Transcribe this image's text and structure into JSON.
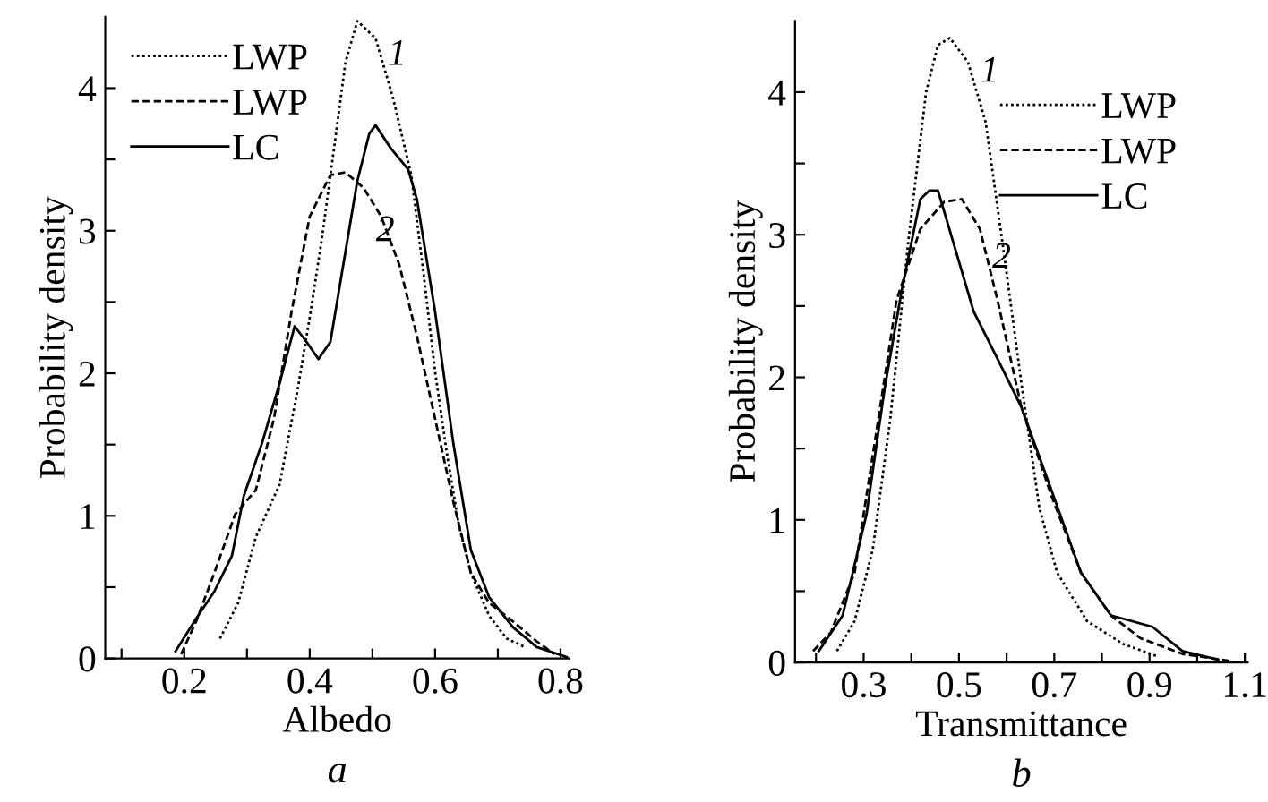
{
  "chart_data": [
    {
      "type": "line",
      "xlabel": "Albedo",
      "ylabel": "Probability density",
      "xlim": [
        0.074,
        0.814
      ],
      "ylim": [
        0,
        4.5
      ],
      "xticks": [
        {
          "value": 0.1,
          "label": null
        },
        0.2,
        {
          "value": 0.3,
          "label": null
        },
        0.4,
        {
          "value": 0.5,
          "label": null
        },
        0.6,
        {
          "value": 0.7,
          "label": null
        },
        0.8
      ],
      "yticks": [
        0,
        {
          "value": 0.5,
          "label": null
        },
        1,
        {
          "value": 1.5,
          "label": null
        },
        2,
        {
          "value": 2.5,
          "label": null
        },
        3,
        {
          "value": 3.5,
          "label": null
        },
        4
      ],
      "grid": false,
      "legend": "top left",
      "series": [
        {
          "name": "LWP",
          "color": "#000000",
          "line_style": "dotted",
          "x": [
            0.257,
            0.286,
            0.314,
            0.352,
            0.381,
            0.4,
            0.419,
            0.438,
            0.457,
            0.476,
            0.505,
            0.533,
            0.562,
            0.581,
            0.6,
            0.619,
            0.638,
            0.657,
            0.686,
            0.714,
            0.743
          ],
          "values": [
            0.14,
            0.39,
            0.85,
            1.22,
            1.89,
            2.39,
            2.93,
            3.55,
            4.18,
            4.47,
            4.35,
            3.93,
            3.39,
            2.72,
            2.01,
            1.43,
            0.93,
            0.6,
            0.3,
            0.14,
            0.08
          ]
        },
        {
          "name": "LWP",
          "color": "#000000",
          "line_style": "dashed",
          "x": [
            0.195,
            0.219,
            0.248,
            0.281,
            0.314,
            0.343,
            0.371,
            0.4,
            0.433,
            0.457,
            0.486,
            0.514,
            0.543,
            0.571,
            0.6,
            0.629,
            0.657,
            0.686,
            0.724,
            0.762,
            0.79
          ],
          "values": [
            0.03,
            0.26,
            0.6,
            1.01,
            1.18,
            1.68,
            2.43,
            3.1,
            3.39,
            3.41,
            3.3,
            3.1,
            2.76,
            2.26,
            1.68,
            1.1,
            0.6,
            0.39,
            0.26,
            0.12,
            0.03
          ]
        },
        {
          "name": "LC",
          "color": "#000000",
          "line_style": "solid",
          "x": [
            0.186,
            0.219,
            0.248,
            0.276,
            0.295,
            0.324,
            0.352,
            0.376,
            0.395,
            0.414,
            0.433,
            0.452,
            0.476,
            0.495,
            0.505,
            0.529,
            0.557,
            0.571,
            0.6,
            0.629,
            0.657,
            0.686,
            0.724,
            0.762,
            0.81
          ],
          "values": [
            0.05,
            0.28,
            0.47,
            0.72,
            1.14,
            1.51,
            1.93,
            2.33,
            2.22,
            2.1,
            2.22,
            2.72,
            3.35,
            3.68,
            3.74,
            3.58,
            3.43,
            3.22,
            2.43,
            1.51,
            0.76,
            0.43,
            0.22,
            0.08,
            0.01
          ]
        }
      ],
      "annotations": [
        "1",
        "2",
        "a"
      ]
    },
    {
      "type": "line",
      "xlabel": "Transmittance",
      "ylabel": "Probability density",
      "xlim": [
        0.156,
        1.106
      ],
      "ylim": [
        0,
        4.5
      ],
      "xticks": [
        {
          "value": 0.2,
          "label": null
        },
        0.3,
        {
          "value": 0.4,
          "label": null
        },
        0.5,
        {
          "value": 0.6,
          "label": null
        },
        0.7,
        {
          "value": 0.8,
          "label": null
        },
        0.9,
        {
          "value": 1.0,
          "label": null
        },
        1.1
      ],
      "yticks": [
        0,
        {
          "value": 0.5,
          "label": null
        },
        1,
        {
          "value": 1.5,
          "label": null
        },
        2,
        {
          "value": 2.5,
          "label": null
        },
        3,
        {
          "value": 3.5,
          "label": null
        },
        4
      ],
      "grid": false,
      "legend": "top right",
      "series": [
        {
          "name": "LWP",
          "color": "#000000",
          "line_style": "dotted",
          "x": [
            0.244,
            0.281,
            0.319,
            0.356,
            0.394,
            0.431,
            0.456,
            0.481,
            0.519,
            0.556,
            0.594,
            0.631,
            0.669,
            0.706,
            0.769,
            0.844,
            0.919
          ],
          "values": [
            0.08,
            0.29,
            0.79,
            1.71,
            2.96,
            4.0,
            4.33,
            4.38,
            4.21,
            3.79,
            2.88,
            1.96,
            1.08,
            0.63,
            0.29,
            0.13,
            0.04
          ]
        },
        {
          "name": "LWP",
          "color": "#000000",
          "line_style": "dashed",
          "x": [
            0.194,
            0.231,
            0.281,
            0.331,
            0.369,
            0.419,
            0.469,
            0.506,
            0.544,
            0.581,
            0.631,
            0.694,
            0.756,
            0.819,
            0.881,
            0.969,
            1.069
          ],
          "values": [
            0.08,
            0.21,
            0.63,
            1.71,
            2.54,
            3.04,
            3.23,
            3.25,
            3.04,
            2.54,
            1.79,
            1.17,
            0.63,
            0.33,
            0.17,
            0.06,
            0.01
          ]
        },
        {
          "name": "LC",
          "color": "#000000",
          "line_style": "solid",
          "x": [
            0.206,
            0.256,
            0.306,
            0.344,
            0.381,
            0.419,
            0.438,
            0.456,
            0.494,
            0.531,
            0.581,
            0.631,
            0.694,
            0.756,
            0.819,
            0.906,
            0.969,
            1.044
          ],
          "values": [
            0.08,
            0.33,
            1.04,
            1.92,
            2.63,
            3.25,
            3.31,
            3.31,
            2.88,
            2.46,
            2.13,
            1.79,
            1.21,
            0.63,
            0.33,
            0.25,
            0.08,
            0.02
          ]
        }
      ],
      "annotations": [
        "1",
        "2",
        "b"
      ]
    }
  ]
}
